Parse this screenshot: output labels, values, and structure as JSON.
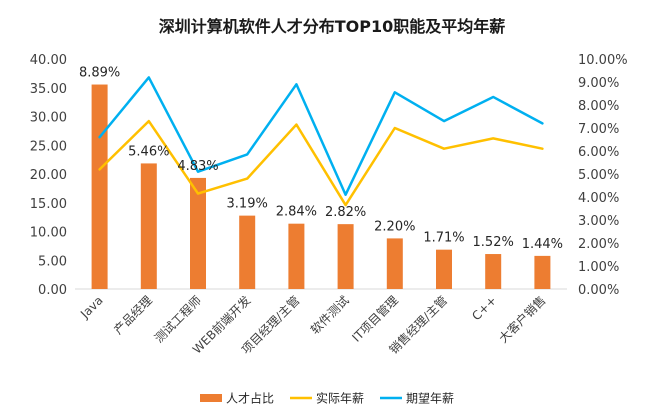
{
  "chart_data": {
    "type": "bar",
    "title": "深圳计算机软件人才分布TOP10职能及平均年薪",
    "categories": [
      "Java",
      "产品经理",
      "测试工程师",
      "WEB前端开发",
      "项目经理/主管",
      "软件测试",
      "IT项目管理",
      "销售经理/主管",
      "C++",
      "大客户销售"
    ],
    "series": [
      {
        "name": "人才占比",
        "kind": "bar",
        "axis": "left",
        "color": "#ED7D31",
        "values": [
          35.56,
          21.84,
          19.32,
          12.76,
          11.36,
          11.28,
          8.8,
          6.84,
          6.08,
          5.76
        ],
        "labels": [
          "8.89%",
          "5.46%",
          "4.83%",
          "3.19%",
          "2.84%",
          "2.82%",
          "2.20%",
          "1.71%",
          "1.52%",
          "1.44%"
        ]
      },
      {
        "name": "实际年薪",
        "kind": "line",
        "axis": "right",
        "color": "#FFC000",
        "values": [
          5.2,
          7.3,
          4.15,
          4.8,
          7.15,
          3.65,
          7.0,
          6.1,
          6.55,
          6.1
        ]
      },
      {
        "name": "期望年薪",
        "kind": "line",
        "axis": "right",
        "color": "#00B0F0",
        "values": [
          6.6,
          9.2,
          5.1,
          5.85,
          8.9,
          4.1,
          8.55,
          7.3,
          8.35,
          7.2
        ]
      }
    ],
    "yleft": {
      "lim": [
        0,
        40
      ],
      "ticks": [
        "0.00",
        "5.00",
        "10.00",
        "15.00",
        "20.00",
        "25.00",
        "30.00",
        "35.00",
        "40.00"
      ]
    },
    "yright": {
      "lim": [
        0,
        10
      ],
      "ticks": [
        "0.00%",
        "1.00%",
        "2.00%",
        "3.00%",
        "4.00%",
        "5.00%",
        "6.00%",
        "7.00%",
        "8.00%",
        "9.00%",
        "10.00%"
      ]
    },
    "grid": false,
    "legend": "bottom-center"
  }
}
